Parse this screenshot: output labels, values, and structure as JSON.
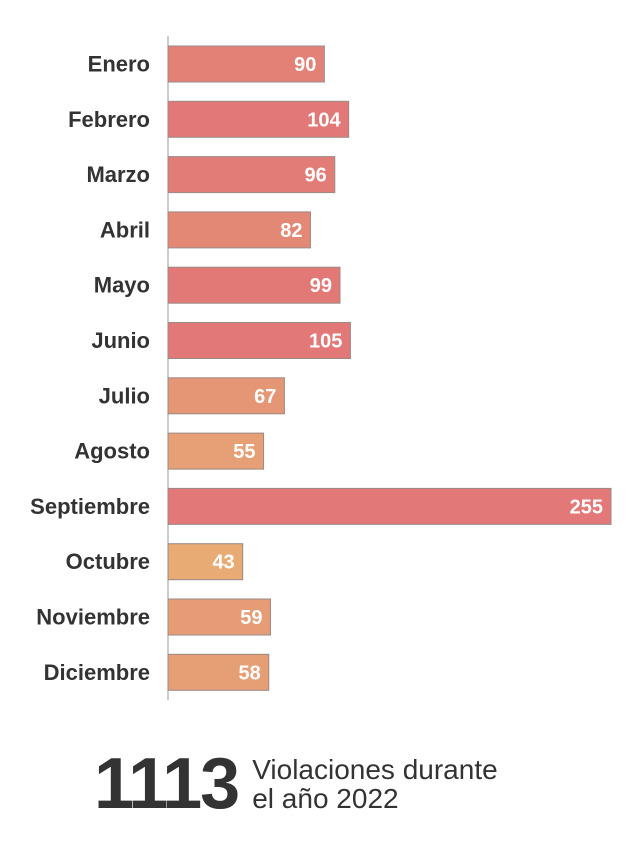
{
  "chart_data": {
    "type": "bar",
    "orientation": "horizontal",
    "categories": [
      "Enero",
      "Febrero",
      "Marzo",
      "Abril",
      "Mayo",
      "Junio",
      "Julio",
      "Agosto",
      "Septiembre",
      "Octubre",
      "Noviembre",
      "Diciembre"
    ],
    "values": [
      90,
      104,
      96,
      82,
      99,
      105,
      67,
      55,
      255,
      43,
      59,
      58
    ],
    "data_labels": true,
    "grid": false,
    "color_scale": {
      "low": "#e8ab74",
      "high": "#e27877"
    }
  },
  "summary": {
    "total": "1113",
    "caption_line1": "Violaciones durante",
    "caption_line2": "el año 2022"
  }
}
